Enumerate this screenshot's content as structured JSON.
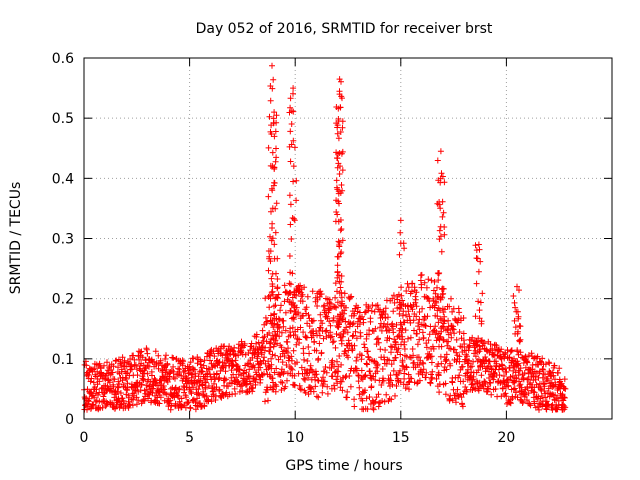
{
  "chart_data": {
    "type": "scatter",
    "title": "Day 052 of 2016, SRMTID for receiver brst",
    "xlabel": "GPS time / hours",
    "ylabel": "SRMTID / TECUs",
    "xlim": [
      0,
      25
    ],
    "ylim": [
      0,
      0.6
    ],
    "x_ticks": [
      0,
      5,
      10,
      15,
      20
    ],
    "x_tick_labels": [
      "0",
      "5",
      "10",
      "15",
      "20"
    ],
    "y_ticks": [
      0,
      0.1,
      0.2,
      0.3,
      0.4,
      0.5,
      0.6
    ],
    "y_tick_labels": [
      "0",
      "0.1",
      "0.2",
      "0.3",
      "0.4",
      "0.5",
      "0.6"
    ],
    "grid": true,
    "marker": "plus",
    "series_color": "#ff0000",
    "x_range_observed": [
      0,
      22.8
    ],
    "notable_peaks": [
      {
        "x": 8.9,
        "y": 0.587
      },
      {
        "x": 9.0,
        "y": 0.51
      },
      {
        "x": 9.9,
        "y": 0.55
      },
      {
        "x": 12.1,
        "y": 0.565
      },
      {
        "x": 12.1,
        "y": 0.54
      },
      {
        "x": 15.0,
        "y": 0.33
      },
      {
        "x": 16.9,
        "y": 0.445
      },
      {
        "x": 18.7,
        "y": 0.29
      },
      {
        "x": 20.5,
        "y": 0.22
      }
    ],
    "baseline_profile": [
      {
        "x": 0,
        "y": 0.055
      },
      {
        "x": 1,
        "y": 0.05
      },
      {
        "x": 2,
        "y": 0.06
      },
      {
        "x": 3,
        "y": 0.075
      },
      {
        "x": 4,
        "y": 0.06
      },
      {
        "x": 5,
        "y": 0.055
      },
      {
        "x": 6,
        "y": 0.07
      },
      {
        "x": 7,
        "y": 0.085
      },
      {
        "x": 8,
        "y": 0.09
      },
      {
        "x": 9,
        "y": 0.13
      },
      {
        "x": 10,
        "y": 0.14
      },
      {
        "x": 11,
        "y": 0.12
      },
      {
        "x": 12,
        "y": 0.14
      },
      {
        "x": 13,
        "y": 0.1
      },
      {
        "x": 14,
        "y": 0.1
      },
      {
        "x": 15,
        "y": 0.13
      },
      {
        "x": 16,
        "y": 0.15
      },
      {
        "x": 17,
        "y": 0.13
      },
      {
        "x": 18,
        "y": 0.09
      },
      {
        "x": 19,
        "y": 0.09
      },
      {
        "x": 20,
        "y": 0.07
      },
      {
        "x": 21,
        "y": 0.07
      },
      {
        "x": 22,
        "y": 0.05
      },
      {
        "x": 22.8,
        "y": 0.04
      }
    ]
  }
}
